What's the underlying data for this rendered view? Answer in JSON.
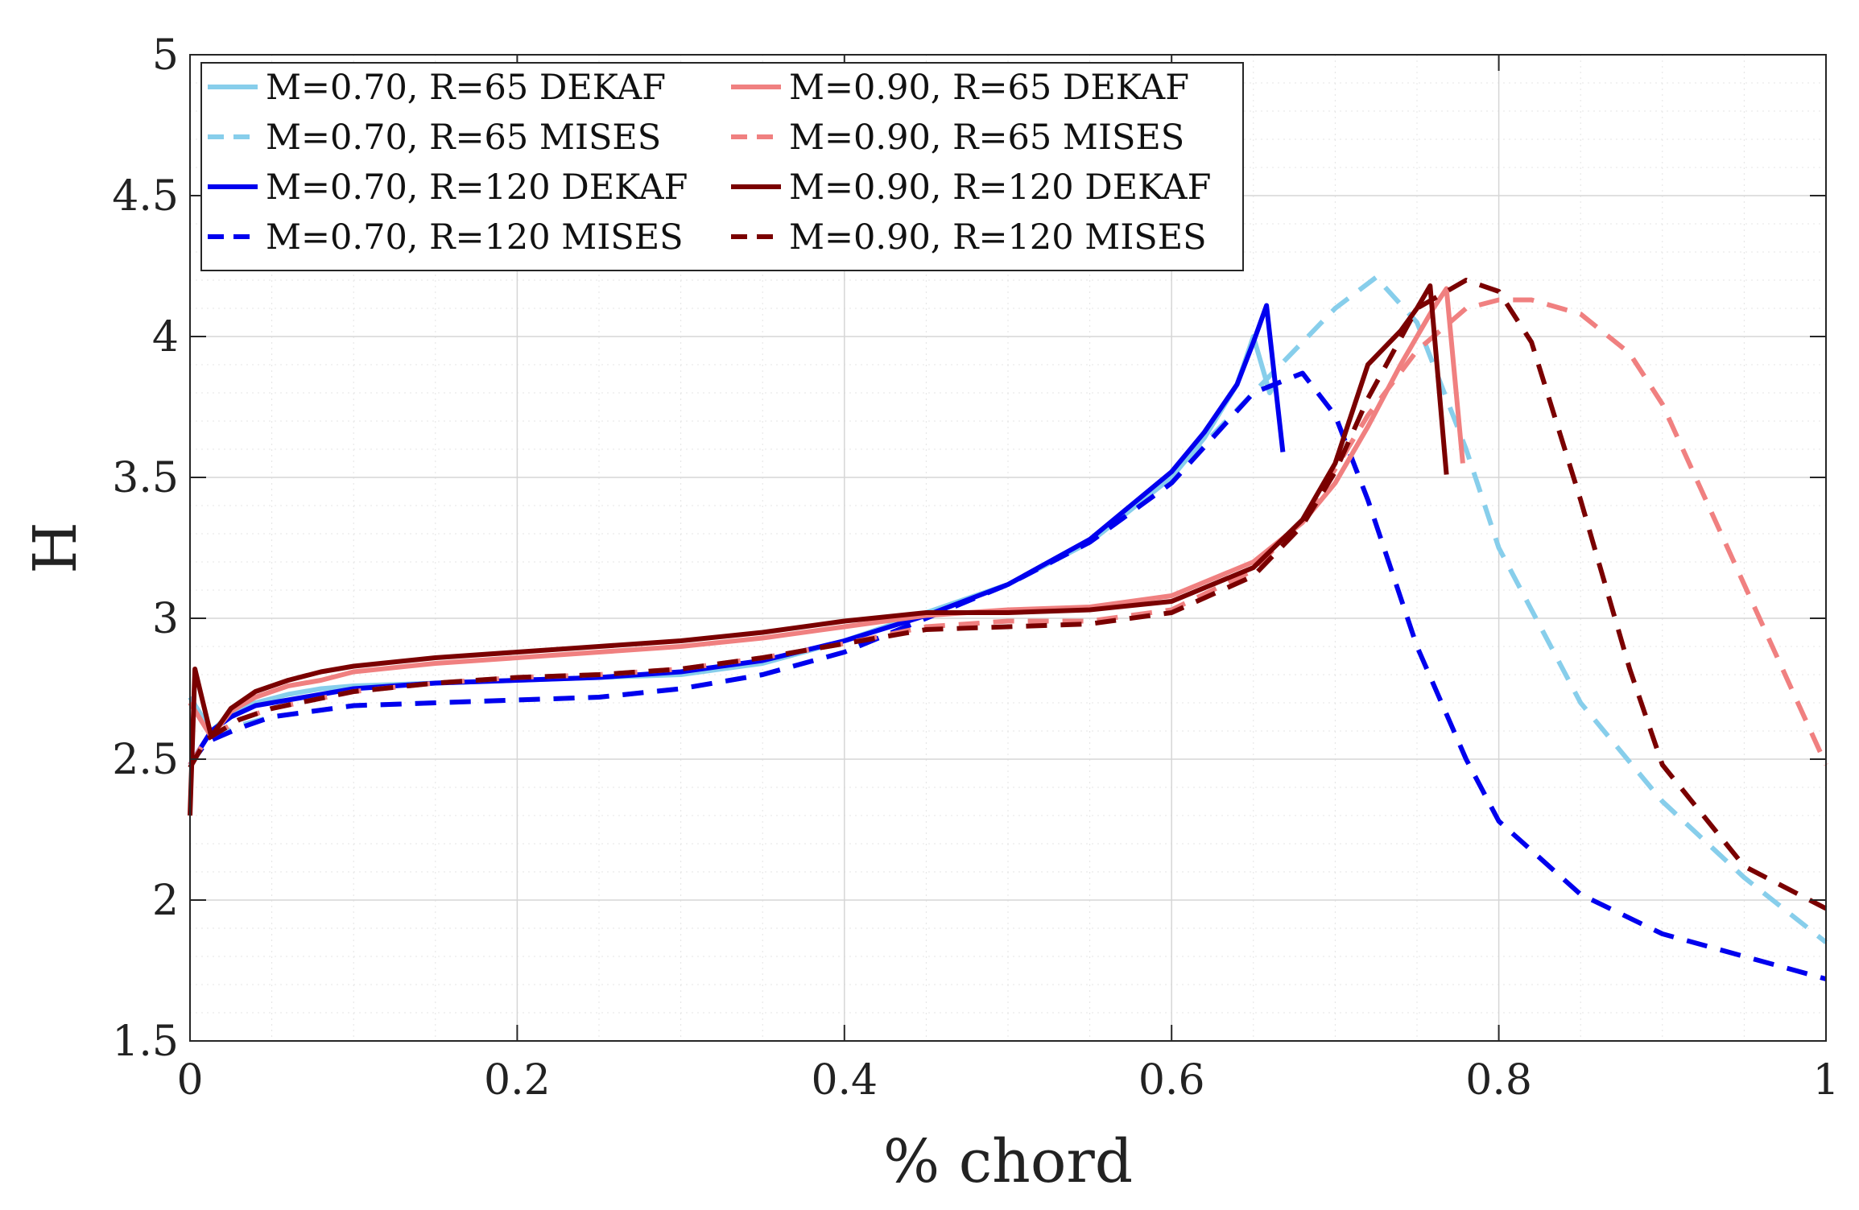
{
  "chart_data": {
    "type": "line",
    "title": "",
    "xlabel": "% chord",
    "ylabel": "H",
    "xlim": [
      0,
      1
    ],
    "ylim": [
      1.5,
      5
    ],
    "grid": true,
    "minor_grid": true,
    "legend_position": "top-left",
    "x_ticks": [
      0,
      0.2,
      0.4,
      0.6,
      0.8,
      1
    ],
    "x_tick_labels": [
      "0",
      "0.2",
      "0.4",
      "0.6",
      "0.8",
      "1"
    ],
    "y_ticks": [
      1.5,
      2,
      2.5,
      3,
      3.5,
      4,
      4.5,
      5
    ],
    "y_tick_labels": [
      "1.5",
      "2",
      "2.5",
      "3",
      "3.5",
      "4",
      "4.5",
      "5"
    ],
    "series": [
      {
        "name": "M=0.70, R=65 DEKAF",
        "color": "#87CEEB",
        "style": "solid",
        "x": [
          0,
          0.013,
          0.025,
          0.04,
          0.06,
          0.08,
          0.1,
          0.15,
          0.2,
          0.25,
          0.3,
          0.35,
          0.4,
          0.45,
          0.5,
          0.55,
          0.6,
          0.62,
          0.64,
          0.65,
          0.66,
          0.662
        ],
        "y": [
          2.72,
          2.6,
          2.66,
          2.7,
          2.73,
          2.75,
          2.76,
          2.77,
          2.78,
          2.79,
          2.8,
          2.84,
          2.92,
          3.02,
          3.12,
          3.27,
          3.5,
          3.64,
          3.83,
          4.0,
          3.8,
          3.82
        ]
      },
      {
        "name": "M=0.70, R=65 MISES",
        "color": "#87CEEB",
        "style": "dashed",
        "x": [
          0,
          0.01,
          0.03,
          0.05,
          0.1,
          0.15,
          0.2,
          0.25,
          0.3,
          0.35,
          0.4,
          0.45,
          0.5,
          0.55,
          0.6,
          0.65,
          0.7,
          0.725,
          0.75,
          0.78,
          0.8,
          0.85,
          0.9,
          0.95,
          1.0
        ],
        "y": [
          2.48,
          2.56,
          2.62,
          2.65,
          2.69,
          2.7,
          2.71,
          2.72,
          2.75,
          2.8,
          2.88,
          3.0,
          3.12,
          3.27,
          3.5,
          3.8,
          4.1,
          4.21,
          4.05,
          3.6,
          3.25,
          2.7,
          2.35,
          2.08,
          1.85
        ]
      },
      {
        "name": "M=0.70, R=120 DEKAF",
        "color": "#0000EE",
        "style": "solid",
        "x": [
          0,
          0.013,
          0.025,
          0.04,
          0.06,
          0.08,
          0.1,
          0.15,
          0.2,
          0.25,
          0.3,
          0.35,
          0.4,
          0.45,
          0.5,
          0.55,
          0.6,
          0.62,
          0.64,
          0.65,
          0.658,
          0.668
        ],
        "y": [
          2.48,
          2.6,
          2.65,
          2.69,
          2.71,
          2.73,
          2.75,
          2.77,
          2.78,
          2.79,
          2.81,
          2.85,
          2.92,
          3.01,
          3.12,
          3.28,
          3.52,
          3.66,
          3.83,
          3.98,
          4.11,
          3.59
        ]
      },
      {
        "name": "M=0.70, R=120 MISES",
        "color": "#0000EE",
        "style": "dashed",
        "x": [
          0,
          0.01,
          0.03,
          0.05,
          0.1,
          0.15,
          0.2,
          0.25,
          0.3,
          0.35,
          0.4,
          0.45,
          0.5,
          0.55,
          0.6,
          0.65,
          0.68,
          0.7,
          0.72,
          0.75,
          0.78,
          0.8,
          0.85,
          0.9,
          0.95,
          1.0
        ],
        "y": [
          2.48,
          2.56,
          2.61,
          2.65,
          2.69,
          2.7,
          2.71,
          2.72,
          2.75,
          2.8,
          2.88,
          3.0,
          3.12,
          3.27,
          3.48,
          3.8,
          3.87,
          3.72,
          3.42,
          2.9,
          2.5,
          2.28,
          2.02,
          1.88,
          1.8,
          1.72
        ]
      },
      {
        "name": "M=0.90, R=65 DEKAF",
        "color": "#F08080",
        "style": "solid",
        "x": [
          0,
          0.013,
          0.025,
          0.04,
          0.06,
          0.08,
          0.1,
          0.15,
          0.2,
          0.25,
          0.3,
          0.35,
          0.4,
          0.45,
          0.5,
          0.55,
          0.6,
          0.65,
          0.68,
          0.7,
          0.72,
          0.74,
          0.76,
          0.768,
          0.778
        ],
        "y": [
          2.7,
          2.58,
          2.67,
          2.72,
          2.76,
          2.78,
          2.81,
          2.84,
          2.86,
          2.88,
          2.9,
          2.93,
          2.97,
          3.01,
          3.03,
          3.04,
          3.08,
          3.2,
          3.34,
          3.48,
          3.68,
          3.9,
          4.1,
          4.17,
          3.55
        ]
      },
      {
        "name": "M=0.90, R=65 MISES",
        "color": "#F08080",
        "style": "dashed",
        "x": [
          0,
          0.01,
          0.03,
          0.05,
          0.1,
          0.15,
          0.2,
          0.25,
          0.3,
          0.35,
          0.4,
          0.45,
          0.5,
          0.55,
          0.6,
          0.65,
          0.68,
          0.7,
          0.72,
          0.75,
          0.78,
          0.8,
          0.82,
          0.85,
          0.88,
          0.9,
          0.95,
          1.0
        ],
        "y": [
          2.48,
          2.57,
          2.64,
          2.68,
          2.74,
          2.77,
          2.79,
          2.8,
          2.82,
          2.86,
          2.91,
          2.97,
          2.99,
          2.99,
          3.03,
          3.17,
          3.35,
          3.53,
          3.72,
          3.95,
          4.1,
          4.13,
          4.13,
          4.08,
          3.94,
          3.76,
          3.12,
          2.48
        ]
      },
      {
        "name": "M=0.90, R=120 DEKAF",
        "color": "#7A0000",
        "style": "solid",
        "x": [
          0,
          0.003,
          0.013,
          0.025,
          0.04,
          0.06,
          0.08,
          0.1,
          0.15,
          0.2,
          0.25,
          0.3,
          0.35,
          0.4,
          0.45,
          0.5,
          0.55,
          0.6,
          0.65,
          0.68,
          0.7,
          0.72,
          0.74,
          0.75,
          0.758,
          0.768
        ],
        "y": [
          2.3,
          2.82,
          2.58,
          2.68,
          2.74,
          2.78,
          2.81,
          2.83,
          2.86,
          2.88,
          2.9,
          2.92,
          2.95,
          2.99,
          3.02,
          3.02,
          3.03,
          3.06,
          3.18,
          3.35,
          3.55,
          3.9,
          4.02,
          4.1,
          4.18,
          3.51
        ]
      },
      {
        "name": "M=0.90, R=120 MISES",
        "color": "#7A0000",
        "style": "dashed",
        "x": [
          0,
          0.01,
          0.03,
          0.05,
          0.1,
          0.15,
          0.2,
          0.25,
          0.3,
          0.35,
          0.4,
          0.45,
          0.5,
          0.55,
          0.6,
          0.65,
          0.68,
          0.7,
          0.72,
          0.75,
          0.78,
          0.8,
          0.82,
          0.85,
          0.88,
          0.9,
          0.95,
          1.0
        ],
        "y": [
          2.47,
          2.57,
          2.64,
          2.68,
          2.74,
          2.77,
          2.79,
          2.8,
          2.82,
          2.86,
          2.91,
          2.96,
          2.97,
          2.98,
          3.02,
          3.15,
          3.33,
          3.52,
          3.78,
          4.1,
          4.2,
          4.16,
          3.98,
          3.42,
          2.82,
          2.48,
          2.12,
          1.97
        ]
      }
    ]
  }
}
